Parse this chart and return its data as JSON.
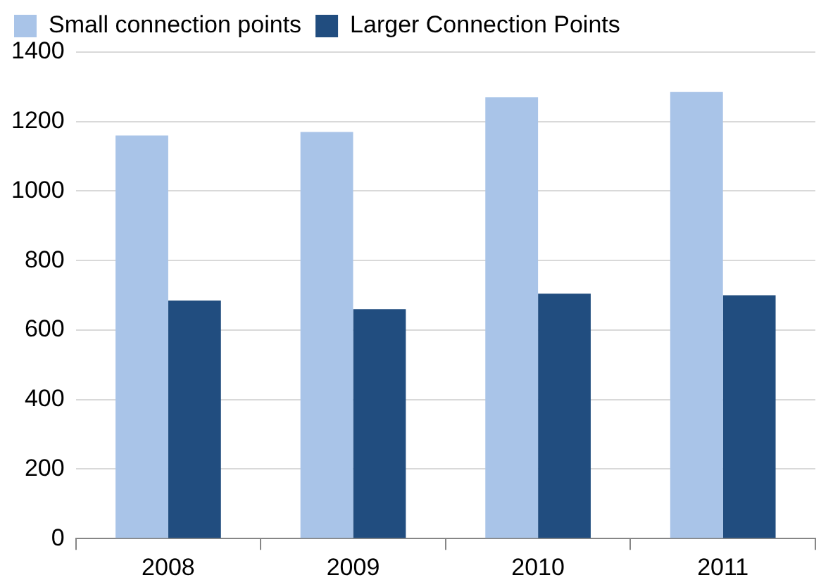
{
  "chart_data": {
    "type": "bar",
    "categories": [
      "2008",
      "2009",
      "2010",
      "2011"
    ],
    "series": [
      {
        "name": "Small connection points",
        "color": "#a9c4e8",
        "values": [
          1160,
          1170,
          1270,
          1285
        ]
      },
      {
        "name": "Larger Connection Points",
        "color": "#214d7f",
        "values": [
          685,
          660,
          705,
          700
        ]
      }
    ],
    "ylim": [
      0,
      1400
    ],
    "yticks": [
      0,
      200,
      400,
      600,
      800,
      1000,
      1200,
      1400
    ],
    "grid": "y",
    "legend": "top"
  }
}
